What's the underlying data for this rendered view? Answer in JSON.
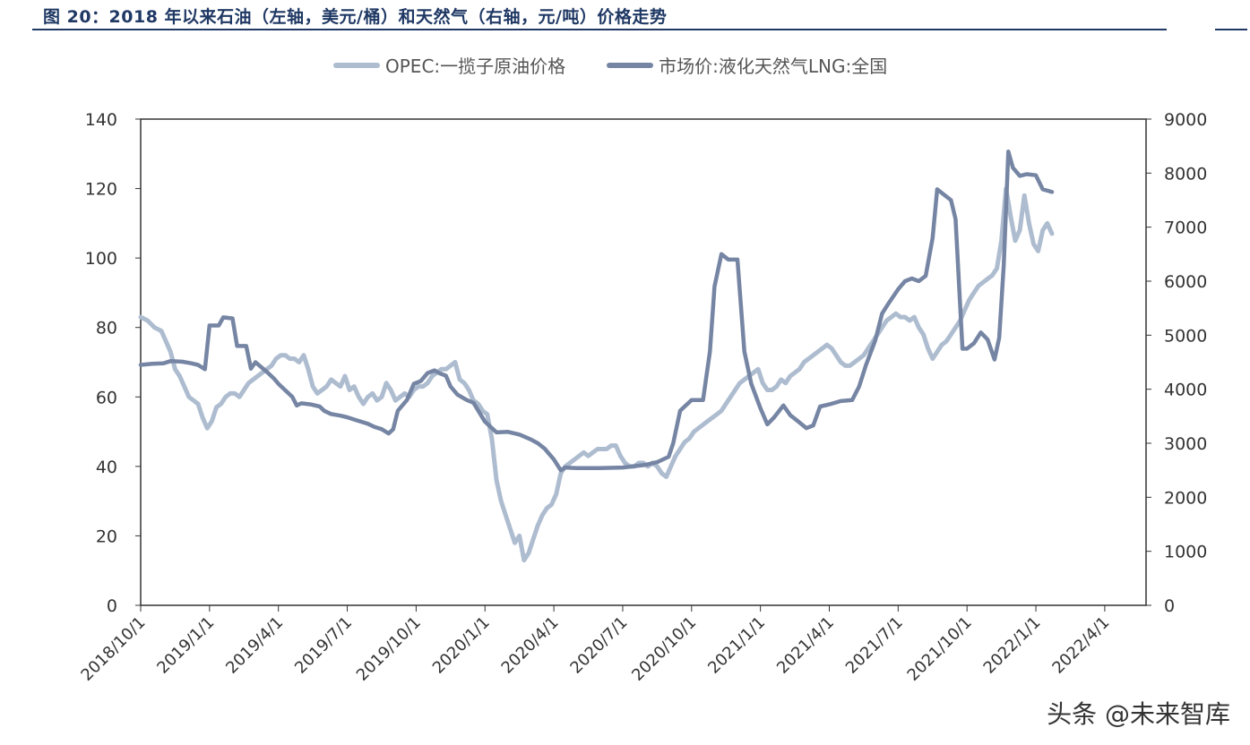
{
  "header": {
    "title": "图 20：2018 年以来石油（左轴，美元/桶）和天然气（右轴，元/吨）价格走势"
  },
  "watermark": "头条 @未来智库",
  "chart_data": {
    "type": "line",
    "title": "",
    "legend_position": "top-center",
    "grid": false,
    "x_ticks": [
      "2018/10/1",
      "2019/1/1",
      "2019/4/1",
      "2019/7/1",
      "2019/10/1",
      "2020/1/1",
      "2020/4/1",
      "2020/7/1",
      "2020/10/1",
      "2021/1/1",
      "2021/4/1",
      "2021/7/1",
      "2021/10/1",
      "2022/1/1",
      "2022/4/1"
    ],
    "x_range_months": [
      0,
      43.8
    ],
    "y_left": {
      "range": [
        0,
        140
      ],
      "ticks": [
        0,
        20,
        40,
        60,
        80,
        100,
        120,
        140
      ]
    },
    "y_right": {
      "range": [
        0,
        9000
      ],
      "ticks": [
        0,
        1000,
        2000,
        3000,
        4000,
        5000,
        6000,
        7000,
        8000,
        9000
      ]
    },
    "series": [
      {
        "name": "OPEC:一揽子原油价格",
        "axis": "left",
        "color": "#aebcd0",
        "points": [
          [
            0,
            83
          ],
          [
            0.3,
            82
          ],
          [
            0.6,
            80
          ],
          [
            0.9,
            79
          ],
          [
            1.1,
            76
          ],
          [
            1.3,
            73
          ],
          [
            1.5,
            68
          ],
          [
            1.7,
            66
          ],
          [
            1.9,
            63
          ],
          [
            2.1,
            60
          ],
          [
            2.3,
            59
          ],
          [
            2.5,
            58
          ],
          [
            2.7,
            54
          ],
          [
            2.9,
            51
          ],
          [
            3.1,
            53
          ],
          [
            3.3,
            57
          ],
          [
            3.5,
            58
          ],
          [
            3.7,
            60
          ],
          [
            3.9,
            61
          ],
          [
            4.1,
            61
          ],
          [
            4.3,
            60
          ],
          [
            4.5,
            62
          ],
          [
            4.7,
            64
          ],
          [
            4.9,
            65
          ],
          [
            5.1,
            66
          ],
          [
            5.3,
            67
          ],
          [
            5.5,
            68
          ],
          [
            5.7,
            69
          ],
          [
            5.9,
            71
          ],
          [
            6.1,
            72
          ],
          [
            6.3,
            72
          ],
          [
            6.5,
            71
          ],
          [
            6.7,
            71
          ],
          [
            6.9,
            70
          ],
          [
            7.1,
            72
          ],
          [
            7.3,
            68
          ],
          [
            7.5,
            63
          ],
          [
            7.7,
            61
          ],
          [
            7.9,
            62
          ],
          [
            8.1,
            63
          ],
          [
            8.3,
            65
          ],
          [
            8.5,
            64
          ],
          [
            8.7,
            63
          ],
          [
            8.9,
            66
          ],
          [
            9.1,
            62
          ],
          [
            9.3,
            63
          ],
          [
            9.5,
            60
          ],
          [
            9.7,
            58
          ],
          [
            9.9,
            60
          ],
          [
            10.1,
            61
          ],
          [
            10.3,
            59
          ],
          [
            10.5,
            60
          ],
          [
            10.7,
            64
          ],
          [
            10.9,
            62
          ],
          [
            11.1,
            59
          ],
          [
            11.3,
            60
          ],
          [
            11.5,
            61
          ],
          [
            11.7,
            60
          ],
          [
            11.9,
            62
          ],
          [
            12.1,
            63
          ],
          [
            12.3,
            63
          ],
          [
            12.5,
            64
          ],
          [
            12.7,
            66
          ],
          [
            12.9,
            67
          ],
          [
            13.1,
            68
          ],
          [
            13.3,
            68
          ],
          [
            13.5,
            69
          ],
          [
            13.7,
            70
          ],
          [
            13.9,
            65
          ],
          [
            14.1,
            64
          ],
          [
            14.3,
            62
          ],
          [
            14.5,
            59
          ],
          [
            14.7,
            58
          ],
          [
            14.9,
            56
          ],
          [
            15.1,
            55
          ],
          [
            15.3,
            48
          ],
          [
            15.5,
            36
          ],
          [
            15.7,
            30
          ],
          [
            15.9,
            26
          ],
          [
            16.1,
            22
          ],
          [
            16.3,
            18
          ],
          [
            16.5,
            20
          ],
          [
            16.7,
            13
          ],
          [
            16.9,
            15
          ],
          [
            17.1,
            19
          ],
          [
            17.3,
            23
          ],
          [
            17.5,
            26
          ],
          [
            17.7,
            28
          ],
          [
            17.9,
            29
          ],
          [
            18.1,
            32
          ],
          [
            18.3,
            38
          ],
          [
            18.5,
            40
          ],
          [
            18.7,
            41
          ],
          [
            18.9,
            42
          ],
          [
            19.1,
            43
          ],
          [
            19.3,
            44
          ],
          [
            19.5,
            43
          ],
          [
            19.7,
            44
          ],
          [
            19.9,
            45
          ],
          [
            20.1,
            45
          ],
          [
            20.3,
            45
          ],
          [
            20.5,
            46
          ],
          [
            20.7,
            46
          ],
          [
            20.9,
            43
          ],
          [
            21.1,
            41
          ],
          [
            21.3,
            40
          ],
          [
            21.5,
            40
          ],
          [
            21.7,
            41
          ],
          [
            21.9,
            41
          ],
          [
            22.1,
            40
          ],
          [
            22.3,
            41
          ],
          [
            22.5,
            40
          ],
          [
            22.7,
            38
          ],
          [
            22.9,
            37
          ],
          [
            23.1,
            40
          ],
          [
            23.3,
            43
          ],
          [
            23.5,
            45
          ],
          [
            23.7,
            47
          ],
          [
            23.9,
            48
          ],
          [
            24.1,
            50
          ],
          [
            24.3,
            51
          ],
          [
            24.5,
            52
          ],
          [
            24.7,
            53
          ],
          [
            24.9,
            54
          ],
          [
            25.1,
            55
          ],
          [
            25.3,
            56
          ],
          [
            25.5,
            58
          ],
          [
            25.7,
            60
          ],
          [
            25.9,
            62
          ],
          [
            26.1,
            64
          ],
          [
            26.3,
            65
          ],
          [
            26.5,
            66
          ],
          [
            26.7,
            67
          ],
          [
            26.9,
            68
          ],
          [
            27.1,
            64
          ],
          [
            27.3,
            62
          ],
          [
            27.5,
            62
          ],
          [
            27.7,
            63
          ],
          [
            27.9,
            65
          ],
          [
            28.1,
            64
          ],
          [
            28.3,
            66
          ],
          [
            28.5,
            67
          ],
          [
            28.7,
            68
          ],
          [
            28.9,
            70
          ],
          [
            29.1,
            71
          ],
          [
            29.3,
            72
          ],
          [
            29.5,
            73
          ],
          [
            29.7,
            74
          ],
          [
            29.9,
            75
          ],
          [
            30.1,
            74
          ],
          [
            30.3,
            72
          ],
          [
            30.5,
            70
          ],
          [
            30.7,
            69
          ],
          [
            30.9,
            69
          ],
          [
            31.1,
            70
          ],
          [
            31.3,
            71
          ],
          [
            31.5,
            72
          ],
          [
            31.7,
            74
          ],
          [
            31.9,
            76
          ],
          [
            32.1,
            78
          ],
          [
            32.3,
            80
          ],
          [
            32.5,
            82
          ],
          [
            32.7,
            83
          ],
          [
            32.9,
            84
          ],
          [
            33.1,
            83
          ],
          [
            33.3,
            83
          ],
          [
            33.5,
            82
          ],
          [
            33.7,
            83
          ],
          [
            33.9,
            80
          ],
          [
            34.1,
            78
          ],
          [
            34.3,
            74
          ],
          [
            34.5,
            71
          ],
          [
            34.7,
            73
          ],
          [
            34.9,
            75
          ],
          [
            35.1,
            76
          ],
          [
            35.3,
            78
          ],
          [
            35.5,
            80
          ],
          [
            35.7,
            82
          ],
          [
            35.9,
            85
          ],
          [
            36.1,
            88
          ],
          [
            36.3,
            90
          ],
          [
            36.5,
            92
          ],
          [
            36.7,
            93
          ],
          [
            36.9,
            94
          ],
          [
            37.1,
            95
          ],
          [
            37.3,
            97
          ],
          [
            37.5,
            105
          ],
          [
            37.7,
            120
          ],
          [
            37.9,
            112
          ],
          [
            38.1,
            105
          ],
          [
            38.3,
            108
          ],
          [
            38.5,
            118
          ],
          [
            38.7,
            110
          ],
          [
            38.9,
            104
          ],
          [
            39.1,
            102
          ],
          [
            39.3,
            108
          ],
          [
            39.5,
            110
          ],
          [
            39.7,
            107
          ]
        ]
      },
      {
        "name": "市场价:液化天然气LNG:全国",
        "axis": "right",
        "color": "#7585a3",
        "points": [
          [
            0,
            4450
          ],
          [
            0.5,
            4470
          ],
          [
            1.0,
            4480
          ],
          [
            1.3,
            4520
          ],
          [
            1.8,
            4510
          ],
          [
            2.2,
            4480
          ],
          [
            2.5,
            4450
          ],
          [
            2.8,
            4370
          ],
          [
            3.0,
            5180
          ],
          [
            3.4,
            5180
          ],
          [
            3.6,
            5330
          ],
          [
            4.0,
            5310
          ],
          [
            4.2,
            4800
          ],
          [
            4.6,
            4800
          ],
          [
            4.8,
            4380
          ],
          [
            5.0,
            4500
          ],
          [
            5.3,
            4390
          ],
          [
            5.5,
            4320
          ],
          [
            5.8,
            4200
          ],
          [
            6.0,
            4100
          ],
          [
            6.3,
            3980
          ],
          [
            6.6,
            3860
          ],
          [
            6.8,
            3700
          ],
          [
            7.0,
            3740
          ],
          [
            7.4,
            3720
          ],
          [
            7.8,
            3680
          ],
          [
            8.0,
            3600
          ],
          [
            8.3,
            3540
          ],
          [
            8.7,
            3510
          ],
          [
            9.0,
            3480
          ],
          [
            9.3,
            3440
          ],
          [
            9.6,
            3400
          ],
          [
            9.9,
            3360
          ],
          [
            10.2,
            3300
          ],
          [
            10.5,
            3260
          ],
          [
            10.8,
            3180
          ],
          [
            11.0,
            3260
          ],
          [
            11.2,
            3600
          ],
          [
            11.6,
            3800
          ],
          [
            11.9,
            4100
          ],
          [
            12.2,
            4150
          ],
          [
            12.5,
            4300
          ],
          [
            12.8,
            4350
          ],
          [
            13.0,
            4300
          ],
          [
            13.3,
            4250
          ],
          [
            13.5,
            4050
          ],
          [
            13.8,
            3900
          ],
          [
            14.2,
            3800
          ],
          [
            14.5,
            3750
          ],
          [
            15.0,
            3400
          ],
          [
            15.5,
            3200
          ],
          [
            16.0,
            3210
          ],
          [
            16.5,
            3160
          ],
          [
            17.0,
            3070
          ],
          [
            17.3,
            3000
          ],
          [
            17.6,
            2900
          ],
          [
            18.0,
            2700
          ],
          [
            18.3,
            2500
          ],
          [
            18.5,
            2550
          ],
          [
            19.0,
            2540
          ],
          [
            20.0,
            2540
          ],
          [
            21.0,
            2550
          ],
          [
            22.0,
            2600
          ],
          [
            22.5,
            2650
          ],
          [
            23.0,
            2750
          ],
          [
            23.2,
            3000
          ],
          [
            23.5,
            3600
          ],
          [
            24.0,
            3800
          ],
          [
            24.5,
            3800
          ],
          [
            24.8,
            4700
          ],
          [
            25.0,
            5900
          ],
          [
            25.3,
            6500
          ],
          [
            25.6,
            6400
          ],
          [
            26.0,
            6400
          ],
          [
            26.3,
            4700
          ],
          [
            26.6,
            4100
          ],
          [
            27.0,
            3650
          ],
          [
            27.3,
            3350
          ],
          [
            27.6,
            3480
          ],
          [
            28.0,
            3700
          ],
          [
            28.3,
            3520
          ],
          [
            28.6,
            3420
          ],
          [
            29.0,
            3280
          ],
          [
            29.3,
            3330
          ],
          [
            29.6,
            3680
          ],
          [
            30.0,
            3720
          ],
          [
            30.5,
            3780
          ],
          [
            31.0,
            3800
          ],
          [
            31.3,
            4050
          ],
          [
            31.6,
            4450
          ],
          [
            32.0,
            4900
          ],
          [
            32.3,
            5400
          ],
          [
            32.6,
            5600
          ],
          [
            33.0,
            5850
          ],
          [
            33.3,
            6000
          ],
          [
            33.6,
            6050
          ],
          [
            33.9,
            6000
          ],
          [
            34.2,
            6100
          ],
          [
            34.5,
            6800
          ],
          [
            34.7,
            7700
          ],
          [
            35.0,
            7600
          ],
          [
            35.3,
            7500
          ],
          [
            35.5,
            7150
          ],
          [
            35.8,
            4750
          ],
          [
            36.0,
            4750
          ],
          [
            36.3,
            4850
          ],
          [
            36.6,
            5050
          ],
          [
            36.9,
            4920
          ],
          [
            37.2,
            4550
          ],
          [
            37.4,
            4950
          ],
          [
            37.6,
            6300
          ],
          [
            37.8,
            8400
          ],
          [
            38.0,
            8100
          ],
          [
            38.3,
            7950
          ],
          [
            38.6,
            7980
          ],
          [
            39.0,
            7960
          ],
          [
            39.3,
            7700
          ],
          [
            39.7,
            7650
          ]
        ]
      }
    ]
  }
}
